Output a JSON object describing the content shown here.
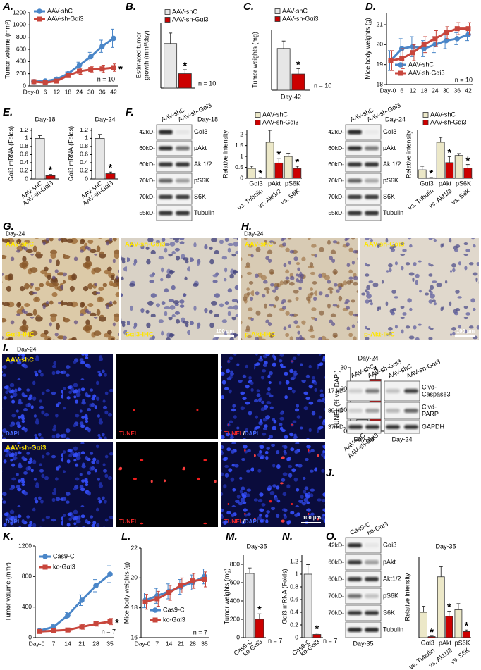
{
  "panel_labels": [
    "A.",
    "B.",
    "C.",
    "D.",
    "E.",
    "F.",
    "G.",
    "H.",
    "I.",
    "J.",
    "K.",
    "L.",
    "M.",
    "N.",
    "O."
  ],
  "chart_data": [
    {
      "type": "line",
      "y_label": "Tumor volume (mm³)",
      "categories": [
        "Day-0",
        "6",
        "12",
        "18",
        "24",
        "30",
        "36",
        "42"
      ],
      "series": [
        {
          "name": "AAV-shC",
          "color": "#4a86c8",
          "marker": "circle",
          "values": [
            70,
            80,
            110,
            200,
            340,
            480,
            650,
            780
          ],
          "errors": [
            10,
            15,
            20,
            30,
            50,
            70,
            100,
            150
          ]
        },
        {
          "name": "AAV-sh-Gαi3",
          "color": "#c8463c",
          "marker": "square",
          "values": [
            70,
            55,
            80,
            170,
            240,
            270,
            280,
            300
          ],
          "errors": [
            10,
            10,
            15,
            30,
            50,
            50,
            60,
            60
          ],
          "significance": [
            null,
            null,
            null,
            null,
            null,
            null,
            null,
            "*"
          ]
        }
      ],
      "ylim": [
        0,
        1200
      ],
      "yticks": [
        0,
        200,
        400,
        600,
        800,
        1000,
        1200
      ],
      "annotations": [
        "n = 10"
      ]
    },
    {
      "type": "bar",
      "y_label": [
        "Estimated tumor",
        "growth (mm³/day)"
      ],
      "series": [
        {
          "name": "AAV-shC",
          "color": "#e6e6e6",
          "label_color": "#2222aa",
          "values": [
            17
          ],
          "errors": [
            4
          ]
        },
        {
          "name": "AAV-sh-Gαi3",
          "color": "#cc0000",
          "label_color": "#cc0000",
          "values": [
            5.5
          ],
          "errors": [
            1.5
          ],
          "significance": [
            "*"
          ]
        }
      ],
      "ylim": [
        0,
        25
      ],
      "annotations": [
        "n = 10"
      ]
    },
    {
      "type": "bar",
      "y_label": "Tumor weights (mg)",
      "x_label": "Day-42",
      "series": [
        {
          "name": "AAV-shC",
          "color": "#e6e6e6",
          "label_color": "#2222aa",
          "values": [
            620
          ],
          "errors": [
            110
          ]
        },
        {
          "name": "AAV-sh-Gαi3",
          "color": "#cc0000",
          "label_color": "#cc0000",
          "values": [
            240
          ],
          "errors": [
            80
          ],
          "significance": [
            "*"
          ]
        }
      ],
      "ylim": [
        0,
        900
      ],
      "annotations": [
        "n = 10"
      ]
    },
    {
      "type": "line",
      "y_label": "Mice body weights (g)",
      "categories": [
        "Day-0",
        "6",
        "12",
        "18",
        "24",
        "30",
        "36",
        "42"
      ],
      "series": [
        {
          "name": "AAV-shC",
          "color": "#4a86c8",
          "marker": "circle",
          "values": [
            19.2,
            19.8,
            19.9,
            19.8,
            20,
            20.2,
            20.3,
            20.5
          ],
          "errors": [
            0.5,
            0.5,
            0.5,
            0.4,
            0.4,
            0.4,
            0.3,
            0.3
          ]
        },
        {
          "name": "AAV-sh-Gαi3",
          "color": "#c8463c",
          "marker": "square",
          "values": [
            19.2,
            19.3,
            19.6,
            20,
            20.3,
            20.6,
            20.8,
            20.8
          ],
          "errors": [
            0.5,
            0.5,
            0.4,
            0.4,
            0.4,
            0.3,
            0.3,
            0.3
          ]
        }
      ],
      "ylim": [
        18,
        21.6
      ],
      "yticks": [
        18,
        19,
        20,
        21
      ],
      "annotations": [
        "n = 10"
      ]
    },
    {
      "type": "bar",
      "title": "Day-18",
      "y_label": "Gαi3 mRNA (Folds)",
      "series": [
        {
          "name": "AAV-shC",
          "color": "#e6e6e6",
          "label_color": "#2222aa",
          "values": [
            1
          ],
          "errors": [
            0.07
          ]
        },
        {
          "name": "AAV-sh-Gαi3",
          "color": "#cc0000",
          "label_color": "#cc0000",
          "values": [
            0.08
          ],
          "errors": [
            0.03
          ],
          "significance": [
            "*"
          ]
        }
      ],
      "ylim": [
        0,
        1.25
      ],
      "yticks": [
        0,
        0.2,
        0.4,
        0.6,
        0.8,
        1,
        1.2
      ]
    },
    {
      "type": "bar",
      "title": "Day-24",
      "y_label": "Gαi3 mRNA (Folds)",
      "series": [
        {
          "name": "AAV-shC",
          "color": "#e6e6e6",
          "label_color": "#2222aa",
          "values": [
            1
          ],
          "errors": [
            0.1
          ]
        },
        {
          "name": "AAV-sh-Gαi3",
          "color": "#cc0000",
          "label_color": "#cc0000",
          "values": [
            0.13
          ],
          "errors": [
            0.04
          ],
          "significance": [
            "*"
          ]
        }
      ],
      "ylim": [
        0,
        1.25
      ],
      "yticks": [
        0,
        0.2,
        0.4,
        0.6,
        0.8,
        1,
        1.2
      ]
    },
    {
      "type": "bar",
      "y_label": "Relative intensity",
      "categories": [
        "Gαi3",
        "pAkt",
        "pS6K"
      ],
      "category_notes": [
        "vs. Tubulin",
        "vs. Akt1/2",
        "vs. S6K"
      ],
      "series": [
        {
          "name": "AAV-shC",
          "color": "#ece8c8",
          "label_color": "#2222aa",
          "values": [
            0.45,
            1.65,
            1.0
          ],
          "errors": [
            0.1,
            0.55,
            0.15
          ]
        },
        {
          "name": "AAV-sh-Gαi3",
          "color": "#cc0000",
          "label_color": "#cc0000",
          "values": [
            0.02,
            0.7,
            0.45
          ],
          "errors": [
            0.01,
            0.2,
            0.1
          ],
          "significance": [
            "*",
            "*",
            "*"
          ]
        }
      ],
      "ylim": [
        0,
        2.2
      ],
      "yticks": [
        0,
        0.5,
        1,
        1.5,
        2
      ]
    },
    {
      "type": "bar",
      "y_label": "Relative intensity",
      "categories": [
        "Gαi3",
        "pAkt",
        "pS6K"
      ],
      "category_notes": [
        "vs. Tubulin",
        "vs. Akt1/2",
        "vs. S6K"
      ],
      "series": [
        {
          "name": "AAV-shC",
          "color": "#ece8c8",
          "label_color": "#2222aa",
          "values": [
            0.35,
            1.5,
            0.95
          ],
          "errors": [
            0.15,
            0.2,
            0.08
          ]
        },
        {
          "name": "AAV-sh-Gαi3",
          "color": "#cc0000",
          "label_color": "#cc0000",
          "values": [
            0.02,
            0.65,
            0.42
          ],
          "errors": [
            0.01,
            0.25,
            0.15
          ],
          "significance": [
            "*",
            "*",
            "*"
          ]
        }
      ],
      "ylim": [
        0,
        2
      ]
    },
    {
      "type": "bar",
      "title": "Day-24",
      "y_label": "TUNEL (% vs. DAPI)",
      "series": [
        {
          "name": "AAV-shC",
          "color": "#e6e6e6",
          "label_color": "#2222aa",
          "values": [
            5.5
          ],
          "errors": [
            2.5
          ]
        },
        {
          "name": "AAV-sh-Gαi3",
          "color": "#cc0000",
          "label_color": "#cc0000",
          "values": [
            24.5
          ],
          "errors": [
            2.5
          ],
          "significance": [
            "*"
          ]
        }
      ],
      "ylim": [
        0,
        30
      ],
      "yticks": [
        0,
        10,
        20,
        30
      ]
    },
    {
      "type": "line",
      "y_label": "Tumor volume (mm³)",
      "categories": [
        "Day-0",
        "7",
        "14",
        "21",
        "28",
        "35"
      ],
      "series": [
        {
          "name": "Cas9-C",
          "color": "#4a86c8",
          "marker": "circle",
          "values": [
            90,
            140,
            290,
            490,
            680,
            830
          ],
          "errors": [
            20,
            30,
            40,
            70,
            80,
            110
          ]
        },
        {
          "name": "ko-Gαi3",
          "color": "#c8463c",
          "marker": "square",
          "values": [
            80,
            90,
            100,
            140,
            180,
            210
          ],
          "errors": [
            15,
            15,
            20,
            30,
            30,
            40
          ],
          "significance": [
            null,
            null,
            null,
            null,
            null,
            "*"
          ]
        }
      ],
      "ylim": [
        0,
        1200
      ],
      "yticks": [
        0,
        400,
        800,
        1200
      ],
      "annotations": [
        "n = 7"
      ]
    },
    {
      "type": "line",
      "y_label": "Mice body weights (g)",
      "categories": [
        "Day-0",
        "7",
        "14",
        "21",
        "28",
        "35"
      ],
      "series": [
        {
          "name": "Cas9-C",
          "color": "#4a86c8",
          "marker": "circle",
          "values": [
            18.5,
            18.8,
            19.1,
            19.4,
            19.7,
            20.1
          ],
          "errors": [
            0.5,
            0.5,
            0.5,
            0.5,
            0.5,
            0.5
          ]
        },
        {
          "name": "ko-Gαi3",
          "color": "#c8463c",
          "marker": "square",
          "values": [
            18.4,
            18.6,
            19.0,
            19.5,
            19.8,
            19.9
          ],
          "errors": [
            0.5,
            0.5,
            0.5,
            0.5,
            0.5,
            0.5
          ]
        }
      ],
      "ylim": [
        16,
        22
      ],
      "yticks": [
        16,
        18,
        20,
        22
      ],
      "annotations": [
        "n = 7"
      ]
    },
    {
      "type": "bar",
      "title": "Day-35",
      "y_label": "Tumor weights (mg)",
      "series": [
        {
          "name": "Cas9-C",
          "color": "#e6e6e6",
          "label_color": "#2222aa",
          "values": [
            700
          ],
          "errors": [
            60
          ]
        },
        {
          "name": "ko-Gαi3",
          "color": "#cc0000",
          "label_color": "#cc0000",
          "values": [
            200
          ],
          "errors": [
            60
          ],
          "significance": [
            "*"
          ]
        }
      ],
      "ylim": [
        0,
        900
      ],
      "yticks": [
        0,
        200,
        400,
        600,
        800
      ],
      "annotations": [
        "n = 7"
      ]
    },
    {
      "type": "bar",
      "y_label": "Gαi3 mRNA (Folds)",
      "series": [
        {
          "name": "Cas9-C",
          "color": "#e6e6e6",
          "label_color": "#2222aa",
          "values": [
            1
          ],
          "errors": [
            0.15
          ]
        },
        {
          "name": "ko-Gαi3",
          "color": "#cc0000",
          "label_color": "#cc0000",
          "values": [
            0.05
          ],
          "errors": [
            0.02
          ],
          "significance": [
            "*"
          ]
        }
      ],
      "ylim": [
        0,
        1.3
      ],
      "yticks": [
        0,
        0.2,
        0.4,
        0.6,
        0.8,
        1,
        1.2
      ],
      "annotations": [
        "n = 7"
      ]
    },
    {
      "type": "bar",
      "title": "Day-35",
      "y_label": "Relative intensity",
      "categories": [
        "Gαi3",
        "pAkt",
        "pS6K"
      ],
      "category_notes": [
        "vs. Tubulin",
        "vs. Akt1/2",
        "vs. S6K"
      ],
      "series": [
        {
          "name": "Cas9-C",
          "color": "#ece8c8",
          "label_color": "#2222aa",
          "values": [
            0.5,
            1.2,
            0.55
          ],
          "errors": [
            0.12,
            0.2,
            0.12
          ]
        },
        {
          "name": "ko-Gαi3",
          "color": "#cc0000",
          "label_color": "#cc0000",
          "values": [
            0.02,
            0.42,
            0.12
          ],
          "errors": [
            0.01,
            0.1,
            0.03
          ],
          "significance": [
            "*",
            "*",
            "*"
          ]
        }
      ],
      "ylim": [
        0,
        1.6
      ]
    }
  ],
  "blots": [
    {
      "lanes": [
        "AAV-shC",
        "AAV-sh-Gαi3"
      ],
      "title": "Day-18",
      "rows": [
        {
          "marker": "42kD-",
          "name": "Gαi3"
        },
        {
          "marker": "60kD-",
          "name": "pAkt"
        },
        {
          "marker": "60kD-",
          "name": "Akt1/2"
        },
        {
          "marker": "70kD-",
          "name": "pS6K"
        },
        {
          "marker": "70kD-",
          "name": "S6K"
        },
        {
          "marker": "55kD-",
          "name": "Tubulin"
        }
      ]
    },
    {
      "lanes": [
        "AAV-shC",
        "AAV-sh-Gαi3"
      ],
      "title": "Day-24",
      "rows": [
        {
          "marker": "42kD-",
          "name": "Gαi3"
        },
        {
          "marker": "60kD-",
          "name": "pAkt"
        },
        {
          "marker": "60kD-",
          "name": "Akt1/2"
        },
        {
          "marker": "70kD-",
          "name": "pS6K"
        },
        {
          "marker": "70kD-",
          "name": "S6K"
        },
        {
          "marker": "55kD-",
          "name": "Tubulin"
        }
      ]
    },
    {
      "lanes": [
        "AAV-shC",
        "AAV-sh-Gαi3",
        "AAV-shC",
        "AAV-sh-Gαi3"
      ],
      "footers": [
        "Day-18",
        "Day-24"
      ],
      "rows": [
        {
          "marker": "17 kD-",
          "name": [
            "Clvd-",
            "Caspase3"
          ]
        },
        {
          "marker": "89 kD-",
          "name": [
            "Clvd-",
            "PARP"
          ]
        },
        {
          "marker": "37 kD-",
          "name": "GAPDH"
        }
      ]
    },
    {
      "lanes": [
        "Cas9-C",
        "ko-Gαi3"
      ],
      "footers": [
        "Day-35"
      ],
      "rows": [
        {
          "marker": "42kD-",
          "name": "Gαi3"
        },
        {
          "marker": "60kD-",
          "name": "pAkt"
        },
        {
          "marker": "60kD-",
          "name": "Akt1/2"
        },
        {
          "marker": "70kD-",
          "name": "pS6K"
        },
        {
          "marker": "70kD-",
          "name": "S6K"
        },
        {
          "name": "Tubulin"
        }
      ]
    }
  ],
  "ihc": [
    {
      "title": "Day-24",
      "panels": [
        {
          "label": "AAV-shC",
          "stain": "Gαi3-IHC"
        },
        {
          "label": "AAV-sh-Gαi3",
          "stain": "Gαi3-IHC"
        }
      ],
      "scale": "100 μm"
    },
    {
      "title": "Day-24",
      "panels": [
        {
          "label": "AAV-shC",
          "stain": "p-Akt-IHC"
        },
        {
          "label": "AAV-sh-Gαi3",
          "stain": "p-Akt-IHC"
        }
      ],
      "scale": "100 μm"
    }
  ],
  "tunel": {
    "title": "Day-24",
    "rows": [
      "AAV-shC",
      "AAV-sh-Gαi3"
    ],
    "channels": [
      [
        "DAPI"
      ],
      [
        "TUNEL"
      ],
      [
        "TUNEL",
        "/",
        "DAPI"
      ]
    ],
    "scale": "100 μm"
  }
}
